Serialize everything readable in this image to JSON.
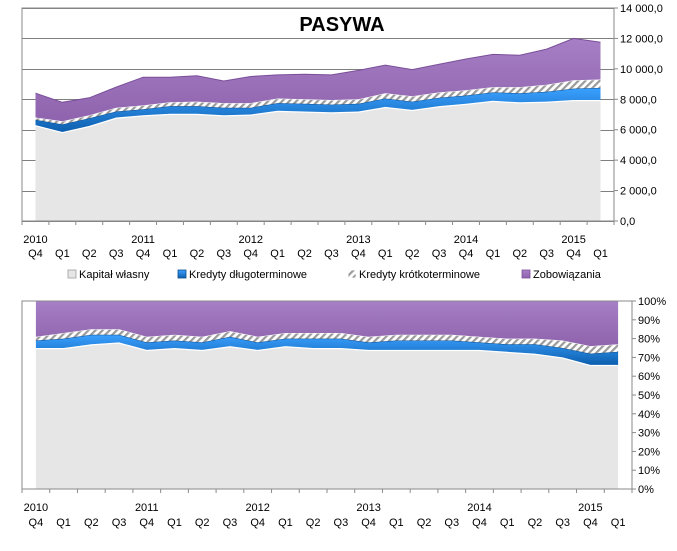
{
  "chart_data": [
    {
      "type": "area",
      "stacked": true,
      "title": "PASYWA",
      "ylim": [
        0,
        14000
      ],
      "y_ticks": [
        "0,0",
        "2 000,0",
        "4 000,0",
        "6 000,0",
        "8 000,0",
        "10 000,0",
        "12 000,0",
        "14 000,0"
      ],
      "y_axis_side": "right",
      "gridlines": "major-y",
      "categories": [
        "2010 Q4",
        "Q1",
        "Q2",
        "Q3",
        "2011 Q4",
        "Q1",
        "Q2",
        "Q3",
        "2012 Q4",
        "Q1",
        "Q2",
        "Q3",
        "2013 Q4",
        "Q1",
        "Q2",
        "Q3",
        "2014 Q4",
        "Q1",
        "Q2",
        "Q3",
        "2015 Q4",
        "Q1"
      ],
      "x_quarter_labels": [
        "Q4",
        "Q1",
        "Q2",
        "Q3",
        "Q4",
        "Q1",
        "Q2",
        "Q3",
        "Q4",
        "Q1",
        "Q2",
        "Q3",
        "Q4",
        "Q1",
        "Q2",
        "Q3",
        "Q4",
        "Q1",
        "Q2",
        "Q3",
        "Q4",
        "Q1"
      ],
      "x_year_labels": [
        {
          "index": 0,
          "label": "2010"
        },
        {
          "index": 4,
          "label": "2011"
        },
        {
          "index": 8,
          "label": "2012"
        },
        {
          "index": 12,
          "label": "2013"
        },
        {
          "index": 16,
          "label": "2014"
        },
        {
          "index": 20,
          "label": "2015"
        }
      ],
      "series": [
        {
          "name": "Kapitał własny",
          "color": "#e6e6e6",
          "values": [
            6300,
            5850,
            6250,
            6800,
            6950,
            7050,
            7050,
            6950,
            7000,
            7250,
            7200,
            7150,
            7200,
            7500,
            7300,
            7550,
            7700,
            7900,
            7800,
            7850,
            7950,
            7950
          ]
        },
        {
          "name": "Kredyty długoterminowe",
          "color": "#1b7fd4",
          "values": [
            350,
            500,
            500,
            400,
            400,
            500,
            500,
            500,
            450,
            500,
            500,
            500,
            500,
            550,
            550,
            550,
            550,
            550,
            600,
            650,
            750,
            800
          ]
        },
        {
          "name": "Kredyty krótkoterminowe",
          "color": "#c8c8c8",
          "values": [
            150,
            200,
            200,
            250,
            250,
            250,
            300,
            300,
            300,
            300,
            300,
            300,
            300,
            350,
            350,
            350,
            350,
            350,
            400,
            450,
            550,
            550
          ]
        },
        {
          "name": "Zobowiązania",
          "color": "#9b6fb8",
          "values": [
            1600,
            1250,
            1150,
            1350,
            1850,
            1650,
            1700,
            1450,
            1750,
            1550,
            1650,
            1650,
            1900,
            1850,
            1750,
            1850,
            2050,
            2150,
            2100,
            2350,
            2750,
            2450
          ]
        }
      ],
      "legend": "bottom"
    },
    {
      "type": "area",
      "stacked": true,
      "percent": true,
      "ylim": [
        0,
        100
      ],
      "y_ticks": [
        "0%",
        "10%",
        "20%",
        "30%",
        "40%",
        "50%",
        "60%",
        "70%",
        "80%",
        "90%",
        "100%"
      ],
      "y_axis_side": "right",
      "categories": [
        "2010 Q4",
        "Q1",
        "Q2",
        "Q3",
        "2011 Q4",
        "Q1",
        "Q2",
        "Q3",
        "2012 Q4",
        "Q1",
        "Q2",
        "Q3",
        "2013 Q4",
        "Q1",
        "Q2",
        "Q3",
        "2014 Q4",
        "Q1",
        "Q2",
        "Q3",
        "2015 Q4",
        "Q1"
      ],
      "x_quarter_labels": [
        "Q4",
        "Q1",
        "Q2",
        "Q3",
        "Q4",
        "Q1",
        "Q2",
        "Q3",
        "Q4",
        "Q1",
        "Q2",
        "Q3",
        "Q4",
        "Q1",
        "Q2",
        "Q3",
        "Q4",
        "Q1",
        "Q2",
        "Q3",
        "Q4",
        "Q1"
      ],
      "x_year_labels": [
        {
          "index": 0,
          "label": "2010"
        },
        {
          "index": 4,
          "label": "2011"
        },
        {
          "index": 8,
          "label": "2012"
        },
        {
          "index": 12,
          "label": "2013"
        },
        {
          "index": 16,
          "label": "2014"
        },
        {
          "index": 20,
          "label": "2015"
        }
      ],
      "series": [
        {
          "name": "Kapitał własny",
          "color": "#e6e6e6",
          "values": [
            75,
            75,
            77,
            78,
            74,
            75,
            74,
            76,
            74,
            76,
            75,
            75,
            74,
            74,
            74,
            74,
            74,
            73,
            72,
            70,
            66,
            66
          ]
        },
        {
          "name": "Kredyty długoterminowe",
          "color": "#1b7fd4",
          "values": [
            4,
            5,
            5,
            4,
            4,
            4,
            4,
            5,
            4,
            4,
            5,
            5,
            4,
            5,
            5,
            5,
            4,
            4,
            5,
            5,
            6,
            7
          ]
        },
        {
          "name": "Kredyty krótkoterminowe",
          "color": "#c8c8c8",
          "values": [
            2,
            3,
            3,
            3,
            3,
            3,
            3,
            3,
            3,
            3,
            3,
            3,
            3,
            3,
            3,
            3,
            3,
            3,
            3,
            4,
            4,
            4
          ]
        },
        {
          "name": "Zobowiązania",
          "color": "#9b6fb8",
          "values": [
            19,
            17,
            15,
            15,
            19,
            18,
            19,
            16,
            19,
            17,
            17,
            17,
            19,
            18,
            18,
            18,
            19,
            20,
            20,
            21,
            24,
            23
          ]
        }
      ]
    }
  ]
}
